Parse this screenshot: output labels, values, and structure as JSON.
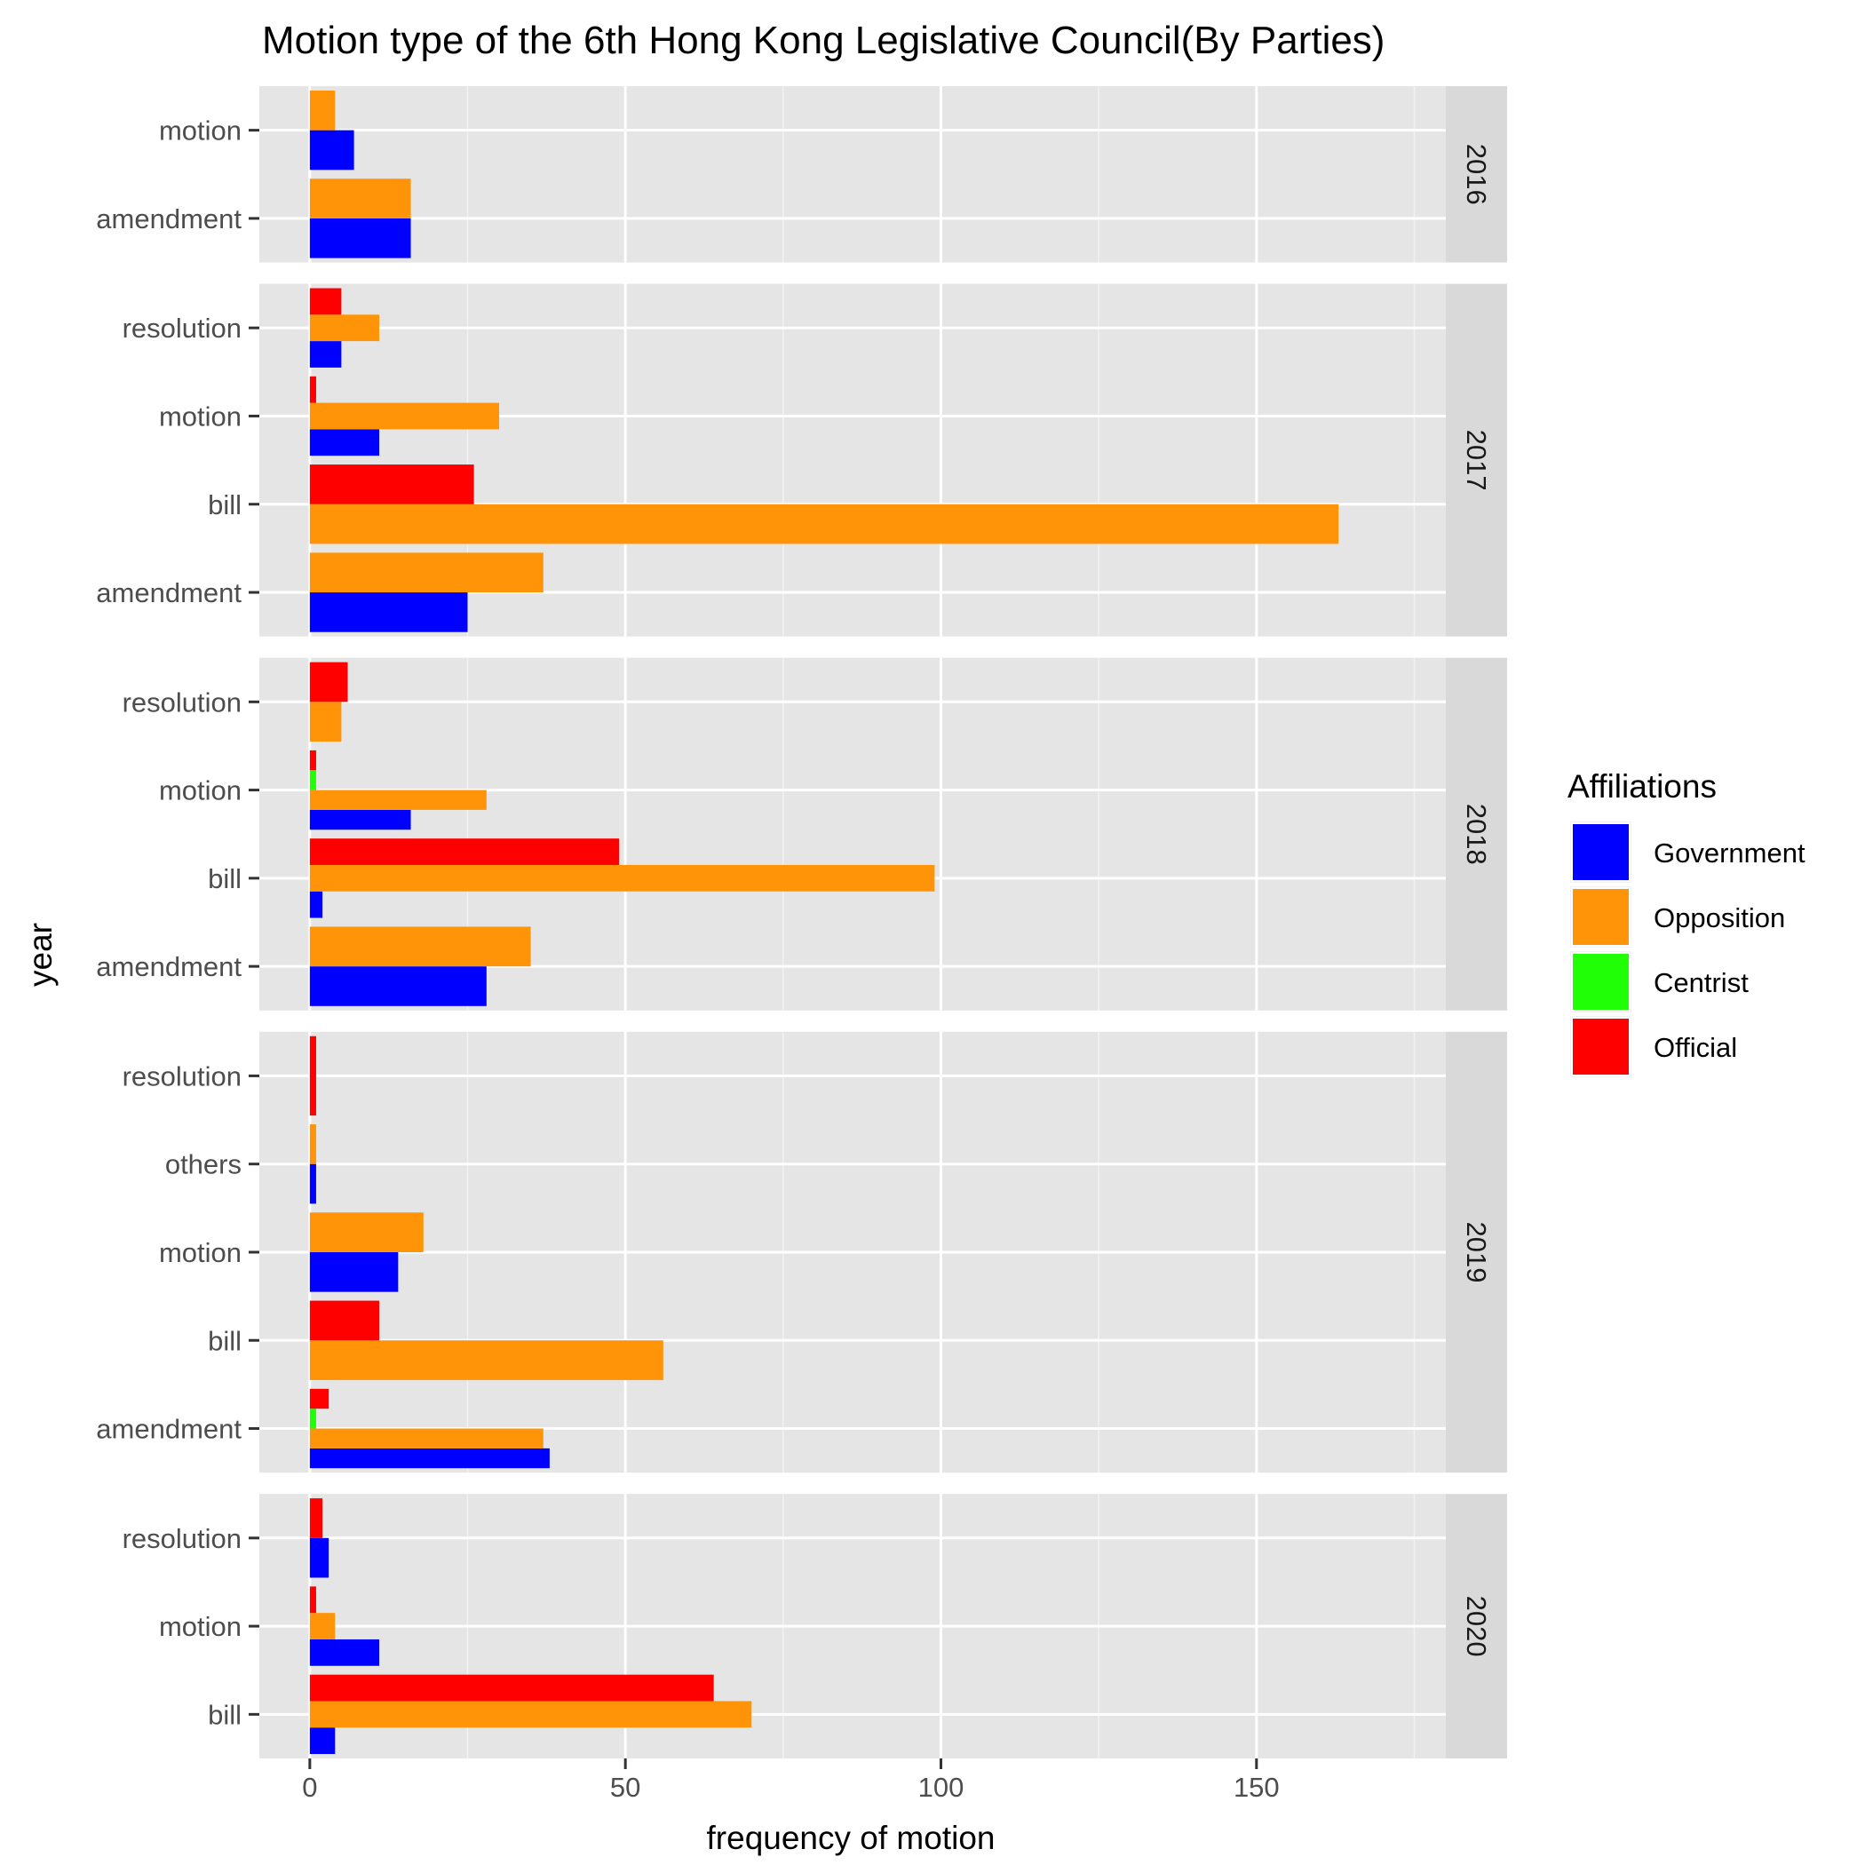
{
  "chart_data": {
    "type": "bar",
    "orientation": "horizontal",
    "faceted": true,
    "title": "Motion type of the 6th Hong Kong Legislative Council(By Parties)",
    "xlabel": "frequency of motion",
    "ylabel": "year",
    "xlim": [
      -8,
      180
    ],
    "x_ticks": [
      0,
      50,
      100,
      150
    ],
    "grid": true,
    "legend": {
      "title": "Affiliations",
      "position": "right",
      "entries": [
        {
          "name": "Government",
          "color": "#0000FF"
        },
        {
          "name": "Opposition",
          "color": "#FF9408"
        },
        {
          "name": "Centrist",
          "color": "#21FF06"
        },
        {
          "name": "Official",
          "color": "#FF0000"
        }
      ]
    },
    "dodge_order": [
      "Government",
      "Opposition",
      "Centrist",
      "Official"
    ],
    "panels": [
      {
        "strip": "2016",
        "categories": [
          "amendment",
          "motion"
        ],
        "values": {
          "amendment": {
            "Government": 16,
            "Opposition": 16
          },
          "motion": {
            "Government": 7,
            "Opposition": 4
          }
        }
      },
      {
        "strip": "2017",
        "categories": [
          "amendment",
          "bill",
          "motion",
          "resolution"
        ],
        "values": {
          "amendment": {
            "Government": 25,
            "Opposition": 37
          },
          "bill": {
            "Opposition": 163,
            "Official": 26
          },
          "motion": {
            "Government": 11,
            "Opposition": 30,
            "Official": 1
          },
          "resolution": {
            "Government": 5,
            "Opposition": 11,
            "Official": 5
          }
        }
      },
      {
        "strip": "2018",
        "categories": [
          "amendment",
          "bill",
          "motion",
          "resolution"
        ],
        "values": {
          "amendment": {
            "Government": 28,
            "Opposition": 35
          },
          "bill": {
            "Government": 2,
            "Opposition": 99,
            "Official": 49
          },
          "motion": {
            "Government": 16,
            "Opposition": 28,
            "Centrist": 1,
            "Official": 1
          },
          "resolution": {
            "Opposition": 5,
            "Official": 6
          }
        }
      },
      {
        "strip": "2019",
        "categories": [
          "amendment",
          "bill",
          "motion",
          "others",
          "resolution"
        ],
        "values": {
          "amendment": {
            "Government": 38,
            "Opposition": 37,
            "Centrist": 1,
            "Official": 3
          },
          "bill": {
            "Opposition": 56,
            "Official": 11
          },
          "motion": {
            "Government": 14,
            "Opposition": 18
          },
          "others": {
            "Government": 1,
            "Opposition": 1
          },
          "resolution": {
            "Official": 1
          }
        }
      },
      {
        "strip": "2020",
        "categories": [
          "bill",
          "motion",
          "resolution"
        ],
        "values": {
          "bill": {
            "Government": 4,
            "Opposition": 70,
            "Official": 64
          },
          "motion": {
            "Government": 11,
            "Opposition": 4,
            "Official": 1
          },
          "resolution": {
            "Government": 3,
            "Official": 2
          }
        }
      }
    ]
  }
}
